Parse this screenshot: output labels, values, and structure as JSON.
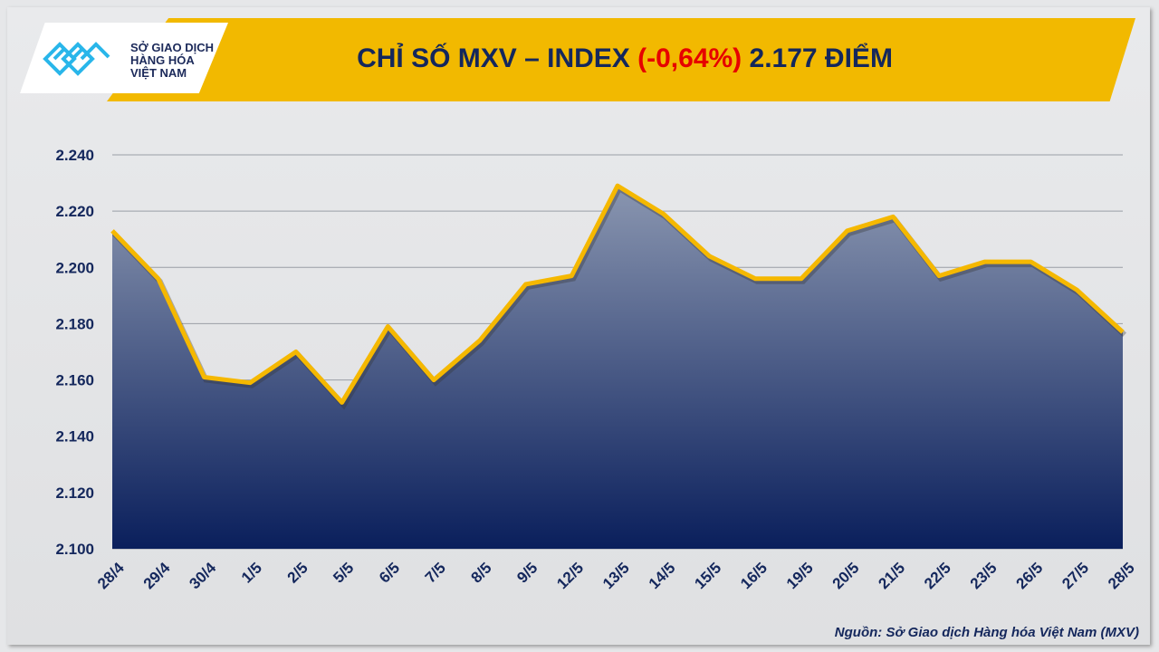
{
  "logo": {
    "lines": [
      "SỞ GIAO DỊCH",
      "HÀNG HÓA",
      "VIỆT NAM"
    ]
  },
  "header": {
    "title_prefix": "CHỈ SỐ MXV – INDEX ",
    "title_change": "(-0,64%)",
    "title_suffix": " 2.177 ĐIỂM"
  },
  "source": "Nguồn: Sở Giao dịch Hàng hóa Việt Nam (MXV)",
  "colors": {
    "line": "#f5b800",
    "fill_top": "#8a96b0",
    "fill_bottom": "#0a1f5c",
    "accent_red": "#e60000",
    "title": "#14275c"
  },
  "chart_data": {
    "type": "area",
    "title": "CHỈ SỐ MXV – INDEX (-0,64%) 2.177 ĐIỂM",
    "xlabel": "",
    "ylabel": "",
    "ylim": [
      2100,
      2240
    ],
    "yticks": [
      2100,
      2120,
      2140,
      2160,
      2180,
      2200,
      2220,
      2240
    ],
    "ytick_labels": [
      "2.100",
      "2.120",
      "2.140",
      "2.160",
      "2.180",
      "2.200",
      "2.220",
      "2.240"
    ],
    "grid": true,
    "categories": [
      "28/4",
      "29/4",
      "30/4",
      "1/5",
      "2/5",
      "5/5",
      "6/5",
      "7/5",
      "8/5",
      "9/5",
      "12/5",
      "13/5",
      "14/5",
      "15/5",
      "16/5",
      "19/5",
      "20/5",
      "21/5",
      "22/5",
      "23/5",
      "26/5",
      "27/5",
      "28/5"
    ],
    "values": [
      2213,
      2196,
      2161,
      2159,
      2170,
      2152,
      2179,
      2160,
      2174,
      2194,
      2197,
      2229,
      2219,
      2204,
      2196,
      2196,
      2213,
      2218,
      2197,
      2202,
      2202,
      2192,
      2177
    ]
  }
}
